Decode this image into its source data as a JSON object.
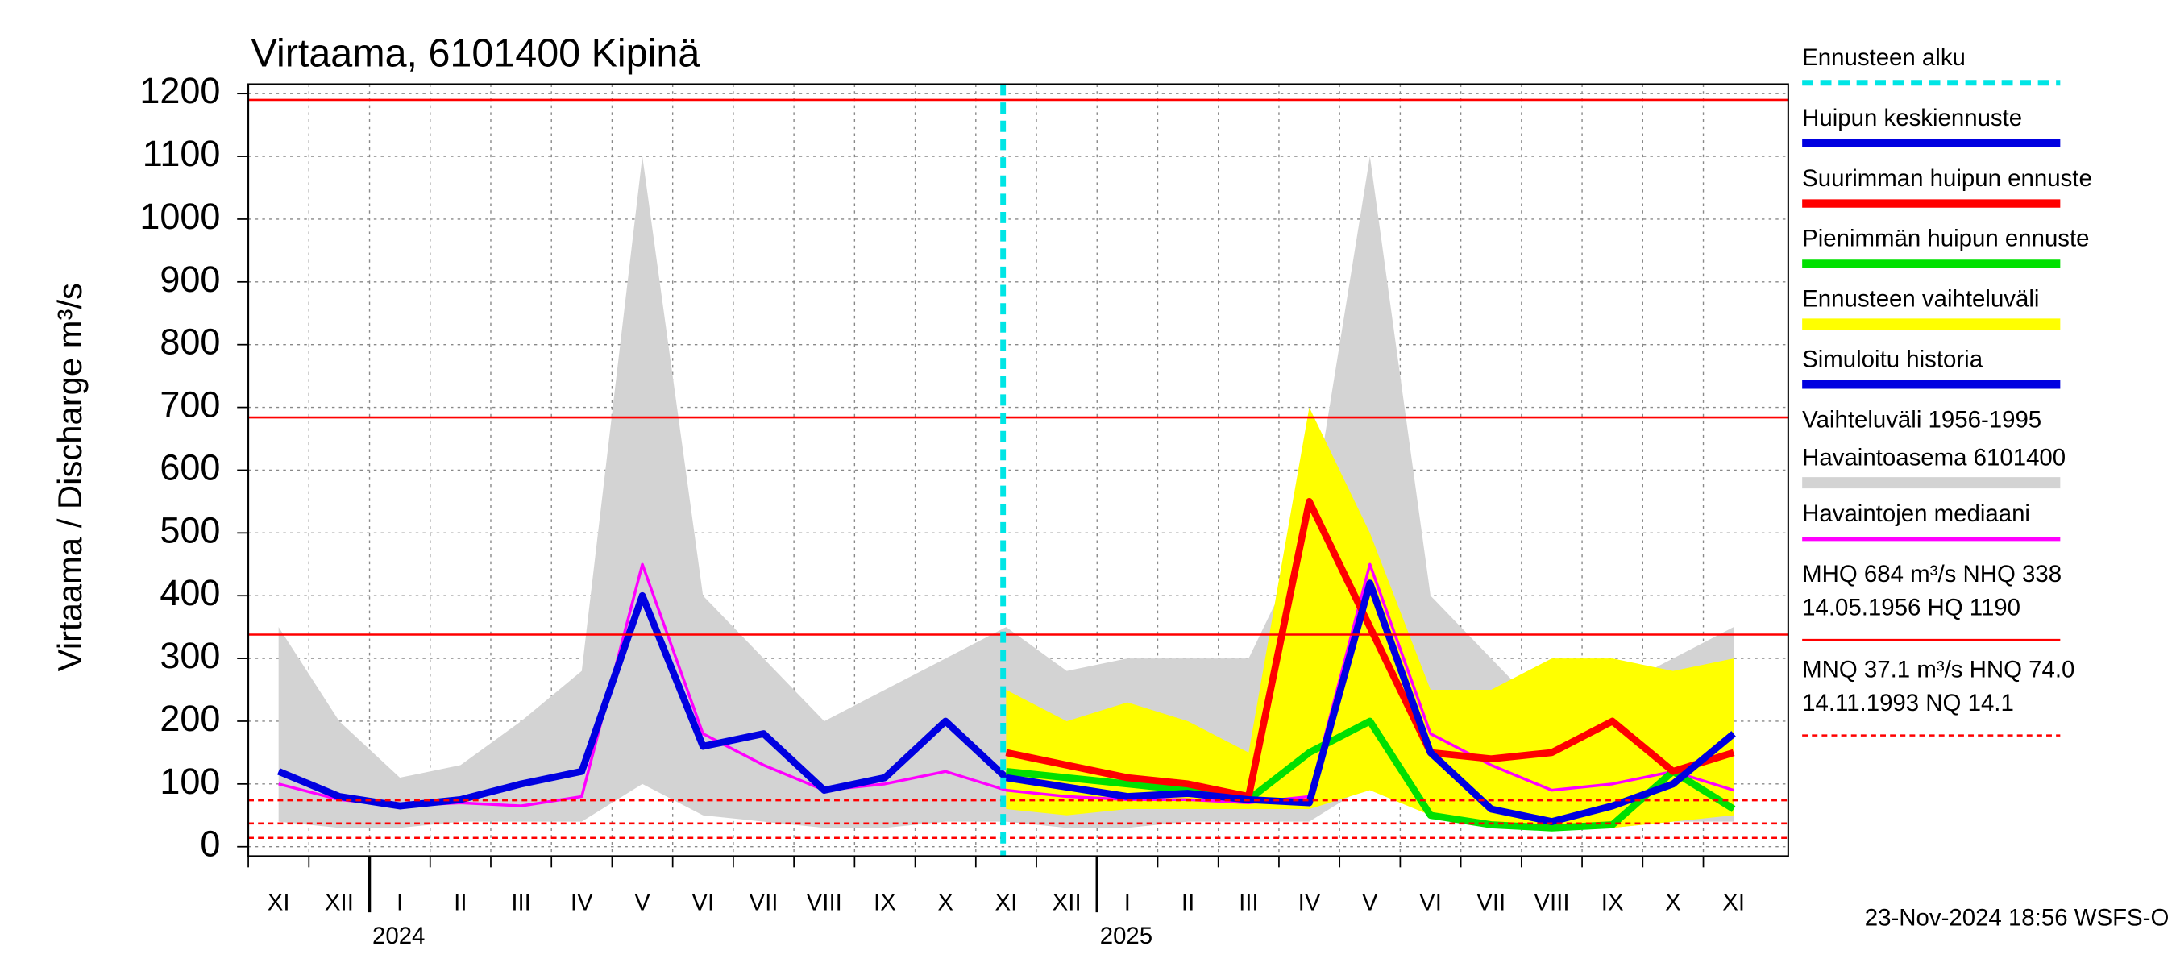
{
  "chart_data": {
    "type": "line",
    "title": "Virtaama, 6101400 Kipinä",
    "y_label": "Virtaama / Discharge    m³/s",
    "categories": [
      "XI",
      "XII",
      "I",
      "II",
      "III",
      "IV",
      "V",
      "VI",
      "VII",
      "VIII",
      "IX",
      "X",
      "XI",
      "XII",
      "I",
      "II",
      "III",
      "IV",
      "V",
      "VI",
      "VII",
      "VIII",
      "IX",
      "X",
      "XI"
    ],
    "years": [
      "2024",
      "2025"
    ],
    "ylim": [
      -15,
      1215
    ],
    "yticks": [
      0,
      100,
      200,
      300,
      400,
      500,
      600,
      700,
      800,
      900,
      1000,
      1100,
      1200
    ],
    "grid": true,
    "forecast_start": {
      "label": "Ennusteen alku",
      "color": "#00e5e5"
    },
    "series": [
      {
        "name": "Huipun keskiennuste",
        "kind": "line",
        "color": "#0000e0",
        "values": [
          null,
          null,
          null,
          null,
          null,
          null,
          null,
          null,
          null,
          null,
          null,
          null,
          110,
          95,
          80,
          85,
          75,
          70,
          420,
          150,
          60,
          40,
          65,
          100,
          180
        ]
      },
      {
        "name": "Suurimman huipun ennuste",
        "kind": "line",
        "color": "#ff0000",
        "values": [
          null,
          null,
          null,
          null,
          null,
          null,
          null,
          null,
          null,
          null,
          null,
          null,
          150,
          130,
          110,
          100,
          80,
          550,
          350,
          150,
          140,
          150,
          200,
          120,
          150
        ]
      },
      {
        "name": "Pienimmän huipun ennuste",
        "kind": "line",
        "color": "#00e000",
        "values": [
          null,
          null,
          null,
          null,
          null,
          null,
          null,
          null,
          null,
          null,
          null,
          null,
          120,
          110,
          100,
          90,
          75,
          150,
          200,
          50,
          35,
          30,
          35,
          120,
          60
        ]
      },
      {
        "name": "Ennusteen vaihteluväli",
        "kind": "area",
        "color": "#ffff00",
        "values": [
          null,
          null,
          null,
          null,
          null,
          null,
          null,
          null,
          null,
          null,
          null,
          null,
          250,
          200,
          230,
          200,
          150,
          700,
          500,
          250,
          250,
          300,
          300,
          280,
          300
        ],
        "low": [
          null,
          null,
          null,
          null,
          null,
          null,
          null,
          null,
          null,
          null,
          null,
          null,
          60,
          50,
          60,
          60,
          60,
          60,
          90,
          50,
          40,
          30,
          30,
          40,
          50
        ]
      },
      {
        "name": "Simuloitu historia",
        "kind": "line",
        "color": "#0000e0",
        "values": [
          120,
          80,
          65,
          75,
          100,
          120,
          400,
          160,
          180,
          90,
          110,
          200,
          110,
          null,
          null,
          null,
          null,
          null,
          null,
          null,
          null,
          null,
          null,
          null,
          null
        ]
      },
      {
        "name": "Vaihteluväli 1956-1995",
        "name2": " Havaintoasema 6101400",
        "kind": "area",
        "color": "#d3d3d3",
        "values": [
          350,
          200,
          110,
          130,
          200,
          280,
          1100,
          400,
          300,
          200,
          250,
          300,
          350,
          280,
          300,
          300,
          300,
          500,
          1100,
          400,
          300,
          200,
          250,
          300,
          350
        ],
        "low": [
          40,
          30,
          30,
          40,
          40,
          40,
          100,
          50,
          40,
          30,
          30,
          40,
          40,
          30,
          30,
          40,
          40,
          40,
          100,
          50,
          40,
          30,
          30,
          40,
          40
        ]
      },
      {
        "name": "Havaintojen mediaani",
        "kind": "line",
        "color": "#ff00ff",
        "values": [
          100,
          75,
          65,
          70,
          65,
          80,
          450,
          180,
          130,
          90,
          100,
          120,
          90,
          80,
          75,
          75,
          70,
          80,
          450,
          180,
          130,
          90,
          100,
          120,
          90
        ]
      }
    ],
    "reference_lines": [
      {
        "value": 1190,
        "style": "solid"
      },
      {
        "value": 684,
        "style": "solid"
      },
      {
        "value": 338,
        "style": "solid"
      },
      {
        "value": 74.0,
        "style": "dashed"
      },
      {
        "value": 37.1,
        "style": "dashed"
      },
      {
        "value": 14.1,
        "style": "dashed"
      }
    ],
    "legend_notes": [
      {
        "lines": [
          "MHQ  684 m³/s NHQ  338",
          "14.05.1956 HQ 1190"
        ],
        "style": "solid"
      },
      {
        "lines": [
          "MNQ 37.1 m³/s HNQ 74.0",
          "14.11.1993 NQ 14.1"
        ],
        "style": "dashed"
      }
    ],
    "footer": "23-Nov-2024 18:56 WSFS-O"
  }
}
